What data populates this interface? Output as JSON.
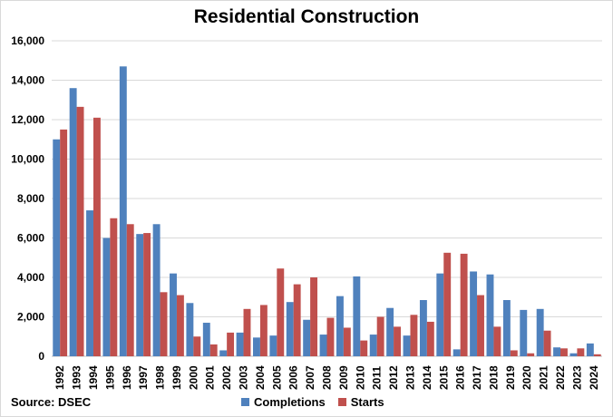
{
  "chart_data": {
    "type": "bar",
    "title": "Residential Construction",
    "source": "Source: DSEC",
    "categories": [
      "1992",
      "1993",
      "1994",
      "1995",
      "1996",
      "1997",
      "1998",
      "1999",
      "2000",
      "2001",
      "2002",
      "2003",
      "2004",
      "2005",
      "2006",
      "2007",
      "2008",
      "2009",
      "2010",
      "2011",
      "2012",
      "2013",
      "2014",
      "2015",
      "2016",
      "2017",
      "2018",
      "2019",
      "2020",
      "2021",
      "2022",
      "2023",
      "2024"
    ],
    "series": [
      {
        "name": "Completions",
        "color": "#4f81bd",
        "values": [
          11000,
          13600,
          7400,
          6000,
          14700,
          6200,
          6700,
          4200,
          2700,
          1700,
          300,
          1200,
          950,
          1050,
          2750,
          1850,
          1100,
          3050,
          4050,
          1100,
          2450,
          1050,
          2850,
          4200,
          350,
          4300,
          4150,
          2850,
          2350,
          2400,
          450,
          150,
          650
        ]
      },
      {
        "name": "Starts",
        "color": "#c0504d",
        "values": [
          11500,
          12650,
          12100,
          7000,
          6700,
          6250,
          3250,
          3100,
          1000,
          600,
          1200,
          2400,
          2600,
          4450,
          3650,
          4000,
          1950,
          1450,
          800,
          2000,
          1500,
          2100,
          1750,
          5250,
          5200,
          3100,
          1500,
          300,
          150,
          1300,
          400,
          400,
          100
        ]
      }
    ],
    "ylim": [
      0,
      16000
    ],
    "yticks": [
      "0",
      "2,000",
      "4,000",
      "6,000",
      "8,000",
      "10,000",
      "12,000",
      "14,000",
      "16,000"
    ],
    "grid": true,
    "legend_position": "bottom"
  }
}
